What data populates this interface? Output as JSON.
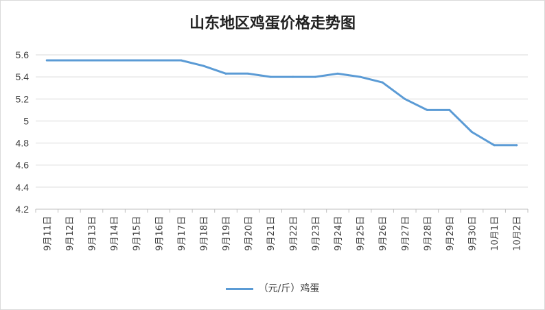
{
  "chart_data": {
    "type": "line",
    "title": "山东地区鸡蛋价格走势图",
    "categories": [
      "9月11日",
      "9月12日",
      "9月13日",
      "9月14日",
      "9月15日",
      "9月16日",
      "9月17日",
      "9月18日",
      "9月19日",
      "9月20日",
      "9月21日",
      "9月22日",
      "9月23日",
      "9月24日",
      "9月25日",
      "9月26日",
      "9月27日",
      "9月28日",
      "9月29日",
      "9月30日",
      "10月1日",
      "10月2日"
    ],
    "series": [
      {
        "name": "（元/斤）鸡蛋",
        "color": "#5b9bd5",
        "values": [
          5.55,
          5.55,
          5.55,
          5.55,
          5.55,
          5.55,
          5.55,
          5.5,
          5.43,
          5.43,
          5.4,
          5.4,
          5.4,
          5.43,
          5.4,
          5.35,
          5.2,
          5.1,
          5.1,
          4.9,
          4.78,
          4.78
        ]
      }
    ],
    "yticks": [
      "4.2",
      "4.4",
      "4.6",
      "4.8",
      "5",
      "5.2",
      "5.4",
      "5.6"
    ],
    "ylim": [
      4.2,
      5.6
    ],
    "grid": "horizontal",
    "legend_position": "bottom"
  }
}
